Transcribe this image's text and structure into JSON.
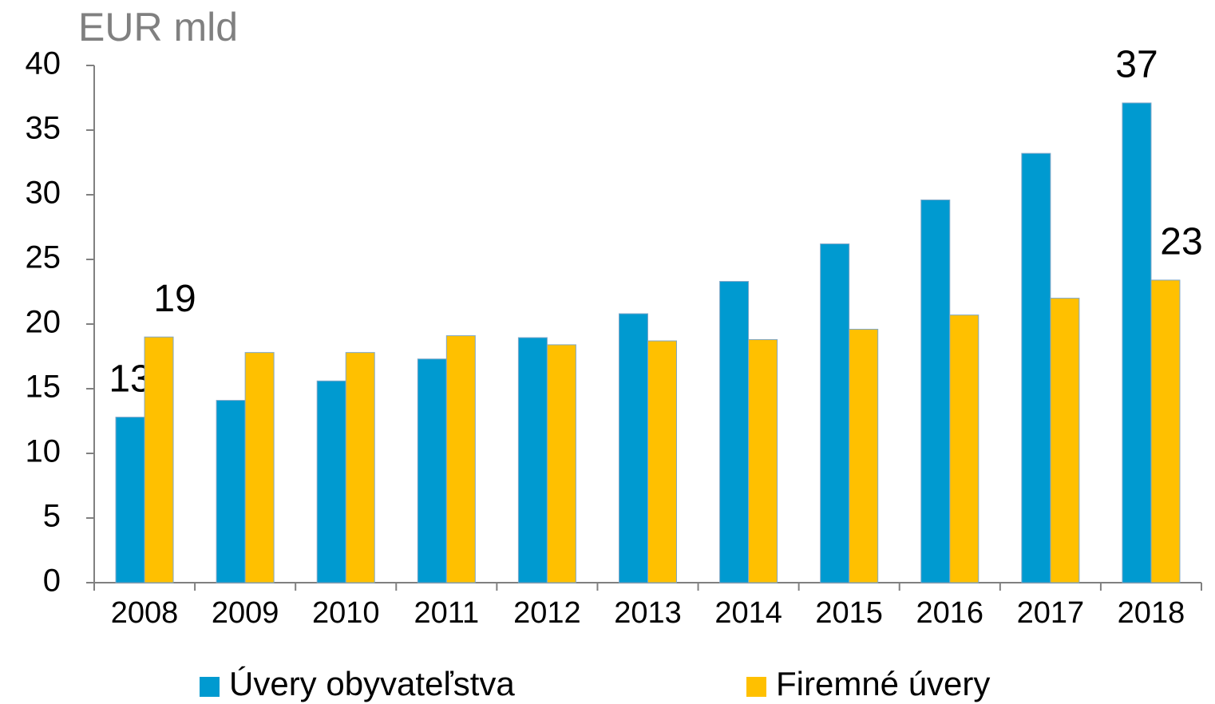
{
  "chart_data": {
    "type": "bar",
    "y_axis_title": "EUR mld",
    "categories": [
      "2008",
      "2009",
      "2010",
      "2011",
      "2012",
      "2013",
      "2014",
      "2015",
      "2016",
      "2017",
      "2018"
    ],
    "series": [
      {
        "name": "Úvery obyvateľstva",
        "color": "#009ad0",
        "values": [
          12.8,
          14.1,
          15.6,
          17.3,
          18.95,
          20.8,
          23.3,
          26.2,
          29.6,
          33.2,
          37.1
        ],
        "value_labels": [
          "13",
          null,
          null,
          null,
          null,
          null,
          null,
          null,
          null,
          null,
          "37"
        ]
      },
      {
        "name": "Firemné úvery",
        "color": "#ffc000",
        "values": [
          19.0,
          17.8,
          17.8,
          19.1,
          18.4,
          18.7,
          18.8,
          19.6,
          20.7,
          22.0,
          23.4
        ],
        "value_labels": [
          "19",
          null,
          null,
          null,
          null,
          null,
          null,
          null,
          null,
          null,
          "23"
        ]
      }
    ],
    "ylim": [
      0,
      40
    ],
    "yticks": [
      0,
      5,
      10,
      15,
      20,
      25,
      30,
      35,
      40
    ]
  }
}
